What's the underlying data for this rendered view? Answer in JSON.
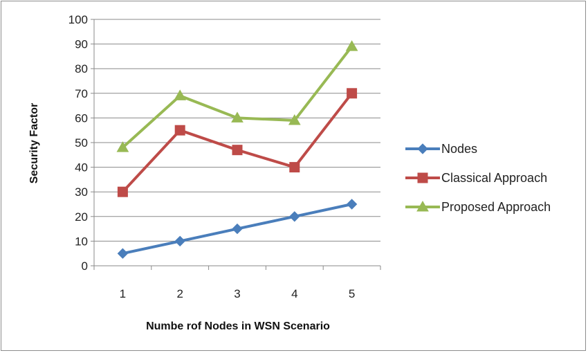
{
  "chart_data": {
    "type": "line",
    "categories": [
      "1",
      "2",
      "3",
      "4",
      "5"
    ],
    "series": [
      {
        "name": "Nodes",
        "values": [
          5,
          10,
          15,
          20,
          25
        ],
        "color": "#4a7ebb",
        "marker": "diamond"
      },
      {
        "name": "Classical Approach",
        "values": [
          30,
          55,
          47,
          40,
          70
        ],
        "color": "#be4b48",
        "marker": "square"
      },
      {
        "name": "Proposed Approach",
        "values": [
          48,
          69,
          60,
          59,
          89
        ],
        "color": "#98b954",
        "marker": "triangle"
      }
    ],
    "xlabel": "Numbe rof Nodes in WSN Scenario",
    "ylabel": "Security Factor",
    "ylim": [
      0,
      100
    ],
    "yticks": [
      0,
      10,
      20,
      30,
      40,
      50,
      60,
      70,
      80,
      90,
      100
    ],
    "grid": true,
    "legend_position": "right"
  }
}
